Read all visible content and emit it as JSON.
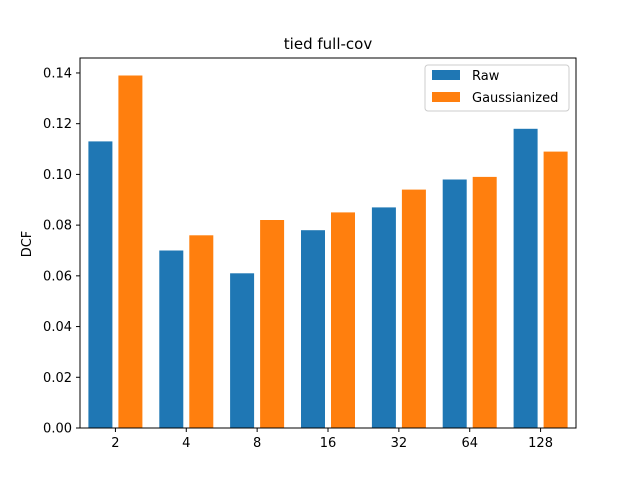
{
  "chart_data": {
    "type": "bar",
    "title": "tied full-cov",
    "xlabel": "",
    "ylabel": "DCF",
    "categories": [
      "2",
      "4",
      "8",
      "16",
      "32",
      "64",
      "128"
    ],
    "series": [
      {
        "name": "Raw",
        "color": "#1f77b4",
        "values": [
          0.113,
          0.07,
          0.061,
          0.078,
          0.087,
          0.098,
          0.118
        ]
      },
      {
        "name": "Gaussianized",
        "color": "#ff7f0e",
        "values": [
          0.139,
          0.076,
          0.082,
          0.085,
          0.094,
          0.099,
          0.109
        ]
      }
    ],
    "ylim": [
      0,
      0.1459
    ],
    "yticks": [
      "0.00",
      "0.02",
      "0.04",
      "0.06",
      "0.08",
      "0.10",
      "0.12",
      "0.14"
    ],
    "ytick_values": [
      0,
      0.02,
      0.04,
      0.06,
      0.08,
      0.1,
      0.12,
      0.14
    ],
    "legend_position": "top-right",
    "grid": false
  }
}
